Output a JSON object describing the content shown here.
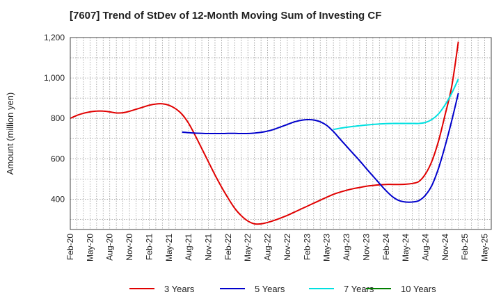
{
  "chart_data": {
    "type": "line",
    "title": "[7607]  Trend of StDev of 12-Month Moving Sum of Investing CF",
    "ylabel": "Amount (million yen)",
    "xlabel": "",
    "ylim": [
      250,
      1200
    ],
    "yticks": [
      "400",
      "600",
      "800",
      "1,000",
      "1,200"
    ],
    "ytick_values": [
      400,
      600,
      800,
      1000,
      1200
    ],
    "xticks": [
      "Feb-20",
      "May-20",
      "Aug-20",
      "Nov-20",
      "Feb-21",
      "May-21",
      "Aug-21",
      "Nov-21",
      "Feb-22",
      "May-22",
      "Aug-22",
      "Nov-22",
      "Feb-23",
      "May-23",
      "Aug-23",
      "Nov-23",
      "Feb-24",
      "May-24",
      "Aug-24",
      "Nov-24",
      "Feb-25",
      "May-25"
    ],
    "grid": true,
    "legend_position": "bottom",
    "series": [
      {
        "name": "3 Years",
        "color": "#e00000",
        "start": "Feb-20",
        "values": [
          800,
          815,
          825,
          832,
          836,
          836,
          832,
          827,
          828,
          835,
          845,
          855,
          865,
          871,
          872,
          865,
          848,
          820,
          775,
          715,
          650,
          585,
          520,
          460,
          405,
          355,
          318,
          292,
          278,
          278,
          285,
          295,
          307,
          320,
          335,
          350,
          365,
          380,
          395,
          410,
          424,
          435,
          444,
          452,
          458,
          464,
          468,
          471,
          473,
          473,
          473,
          474,
          478,
          488,
          525,
          590,
          690,
          820,
          960,
          1180
        ]
      },
      {
        "name": "5 Years",
        "color": "#0000cc",
        "start": "Feb-20",
        "values": [
          null,
          null,
          null,
          null,
          null,
          null,
          null,
          null,
          null,
          null,
          null,
          null,
          null,
          null,
          null,
          null,
          null,
          732,
          729,
          727,
          726,
          725,
          725,
          725,
          726,
          726,
          725,
          725,
          727,
          731,
          737,
          746,
          758,
          770,
          782,
          790,
          794,
          792,
          783,
          765,
          735,
          698,
          662,
          626,
          590,
          552,
          515,
          478,
          442,
          412,
          393,
          386,
          386,
          393,
          420,
          470,
          555,
          665,
          790,
          925
        ]
      },
      {
        "name": "7 Years",
        "color": "#00e0e0",
        "start": "Feb-20",
        "values": [
          null,
          null,
          null,
          null,
          null,
          null,
          null,
          null,
          null,
          null,
          null,
          null,
          null,
          null,
          null,
          null,
          null,
          null,
          null,
          null,
          null,
          null,
          null,
          null,
          null,
          null,
          null,
          null,
          null,
          null,
          null,
          null,
          null,
          null,
          null,
          null,
          null,
          null,
          null,
          null,
          745,
          751,
          756,
          760,
          764,
          767,
          770,
          772,
          774,
          775,
          775,
          775,
          775,
          775,
          780,
          795,
          823,
          868,
          925,
          995
        ]
      },
      {
        "name": "10 Years",
        "color": "#008000",
        "start": "Feb-20",
        "values": []
      }
    ]
  }
}
